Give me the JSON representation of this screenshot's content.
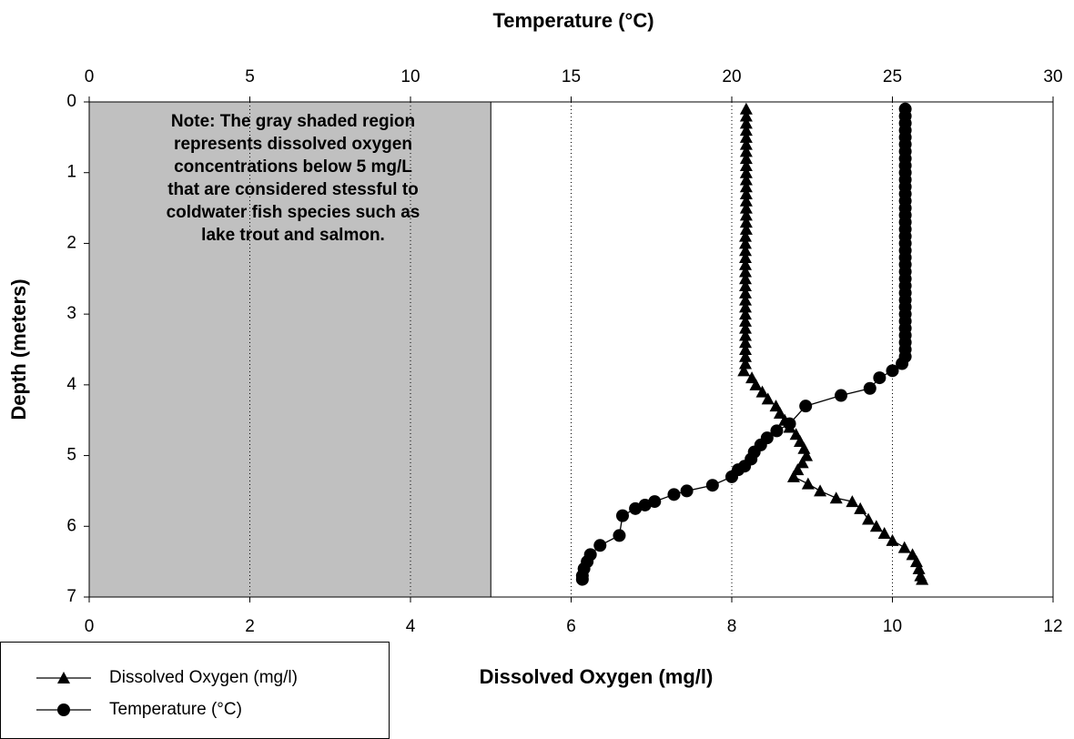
{
  "chart_data": {
    "type": "profile",
    "title": "Temperature (°C)",
    "x_label": "Dissolved Oxygen (mg/l)",
    "y_label": "Depth (meters)",
    "annotation": [
      "Note: The gray shaded region",
      "represents dissolved oxygen",
      "concentrations below 5 mg/L",
      "that are considered stessful to",
      "coldwater fish species such as",
      "lake trout and salmon."
    ],
    "threshold": 5,
    "xlim": [
      0,
      12
    ],
    "xticks": [
      0,
      2,
      4,
      6,
      8,
      10,
      12
    ],
    "x2lim": [
      0,
      30
    ],
    "x2ticks": [
      0,
      5,
      10,
      15,
      20,
      25,
      30
    ],
    "ylim": [
      0,
      7
    ],
    "yticks": [
      0,
      1,
      2,
      3,
      4,
      5,
      6,
      7
    ],
    "y_inverted": true,
    "grid": true,
    "series": [
      {
        "name": "Dissolved Oxygen (mg/l)",
        "color": "#000000",
        "marker": "triangle",
        "axis": "x",
        "depth": [
          0.1,
          0.2,
          0.3,
          0.4,
          0.5,
          0.6,
          0.7,
          0.8,
          0.9,
          1.0,
          1.1,
          1.2,
          1.3,
          1.4,
          1.5,
          1.6,
          1.7,
          1.8,
          1.9,
          2.0,
          2.1,
          2.2,
          2.3,
          2.4,
          2.5,
          2.6,
          2.7,
          2.8,
          2.9,
          3.0,
          3.1,
          3.2,
          3.3,
          3.4,
          3.5,
          3.6,
          3.7,
          3.8,
          3.9,
          4.0,
          4.1,
          4.2,
          4.3,
          4.4,
          4.5,
          4.6,
          4.7,
          4.8,
          4.9,
          5.0,
          5.1,
          5.2,
          5.3,
          5.4,
          5.5,
          5.6,
          5.65,
          5.75,
          5.9,
          6.0,
          6.1,
          6.2,
          6.3,
          6.4,
          6.5,
          6.6,
          6.7,
          6.75
        ],
        "values": [
          8.18,
          8.18,
          8.18,
          8.18,
          8.18,
          8.18,
          8.18,
          8.18,
          8.18,
          8.18,
          8.18,
          8.18,
          8.18,
          8.18,
          8.18,
          8.18,
          8.18,
          8.18,
          8.17,
          8.17,
          8.17,
          8.17,
          8.17,
          8.17,
          8.17,
          8.17,
          8.17,
          8.17,
          8.17,
          8.17,
          8.17,
          8.17,
          8.17,
          8.17,
          8.17,
          8.17,
          8.17,
          8.15,
          8.25,
          8.3,
          8.38,
          8.45,
          8.55,
          8.6,
          8.66,
          8.72,
          8.8,
          8.85,
          8.9,
          8.93,
          8.88,
          8.82,
          8.77,
          8.95,
          9.1,
          9.3,
          9.5,
          9.6,
          9.7,
          9.8,
          9.9,
          10.0,
          10.15,
          10.25,
          10.3,
          10.33,
          10.35,
          10.37
        ]
      },
      {
        "name": "Temperature (°C)",
        "color": "#000000",
        "marker": "circle",
        "axis": "x2",
        "depth": [
          0.1,
          0.2,
          0.3,
          0.4,
          0.5,
          0.6,
          0.7,
          0.8,
          0.9,
          1.0,
          1.1,
          1.2,
          1.3,
          1.4,
          1.5,
          1.6,
          1.7,
          1.8,
          1.9,
          2.0,
          2.1,
          2.2,
          2.3,
          2.4,
          2.5,
          2.6,
          2.7,
          2.8,
          2.9,
          3.0,
          3.1,
          3.2,
          3.3,
          3.4,
          3.5,
          3.6,
          3.7,
          3.8,
          3.9,
          4.05,
          4.15,
          4.3,
          4.55,
          4.65,
          4.75,
          4.85,
          4.95,
          5.05,
          5.15,
          5.2,
          5.3,
          5.42,
          5.5,
          5.55,
          5.65,
          5.7,
          5.75,
          5.85,
          6.13,
          6.27,
          6.4,
          6.5,
          6.6,
          6.7,
          6.75
        ],
        "values": [
          25.4,
          25.4,
          25.4,
          25.4,
          25.4,
          25.4,
          25.4,
          25.4,
          25.4,
          25.4,
          25.4,
          25.4,
          25.4,
          25.4,
          25.4,
          25.4,
          25.4,
          25.4,
          25.4,
          25.4,
          25.4,
          25.4,
          25.4,
          25.4,
          25.4,
          25.4,
          25.4,
          25.4,
          25.4,
          25.4,
          25.4,
          25.4,
          25.4,
          25.4,
          25.4,
          25.4,
          25.3,
          25.0,
          24.6,
          24.3,
          23.4,
          22.3,
          21.8,
          21.4,
          21.1,
          20.9,
          20.7,
          20.6,
          20.4,
          20.2,
          20.0,
          19.4,
          18.6,
          18.2,
          17.6,
          17.3,
          17.0,
          16.6,
          16.5,
          15.9,
          15.6,
          15.5,
          15.4,
          15.35,
          15.35
        ]
      }
    ]
  }
}
